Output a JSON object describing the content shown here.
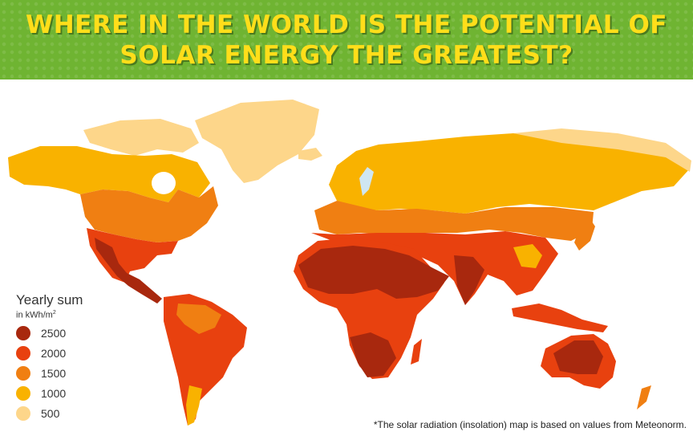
{
  "title": "WHERE IN THE WORLD IS THE POTENTIAL OF SOLAR ENERGY THE GREATEST?",
  "legend": {
    "title": "Yearly sum",
    "unit_prefix": "in kWh/m",
    "unit_sup": "2",
    "items": [
      {
        "label": "2500",
        "color": "#a8280e"
      },
      {
        "label": "2000",
        "color": "#e8410f"
      },
      {
        "label": "1500",
        "color": "#f07f12"
      },
      {
        "label": "1000",
        "color": "#f9b200"
      },
      {
        "label": "500",
        "color": "#fdd68a"
      }
    ]
  },
  "footnote": "*The solar radiation (insolation) map is based on values from Meteonorm.",
  "colors": {
    "banner": "#6fb432",
    "title_text": "#ffde1a",
    "water_light": "#cfe6f2"
  }
}
